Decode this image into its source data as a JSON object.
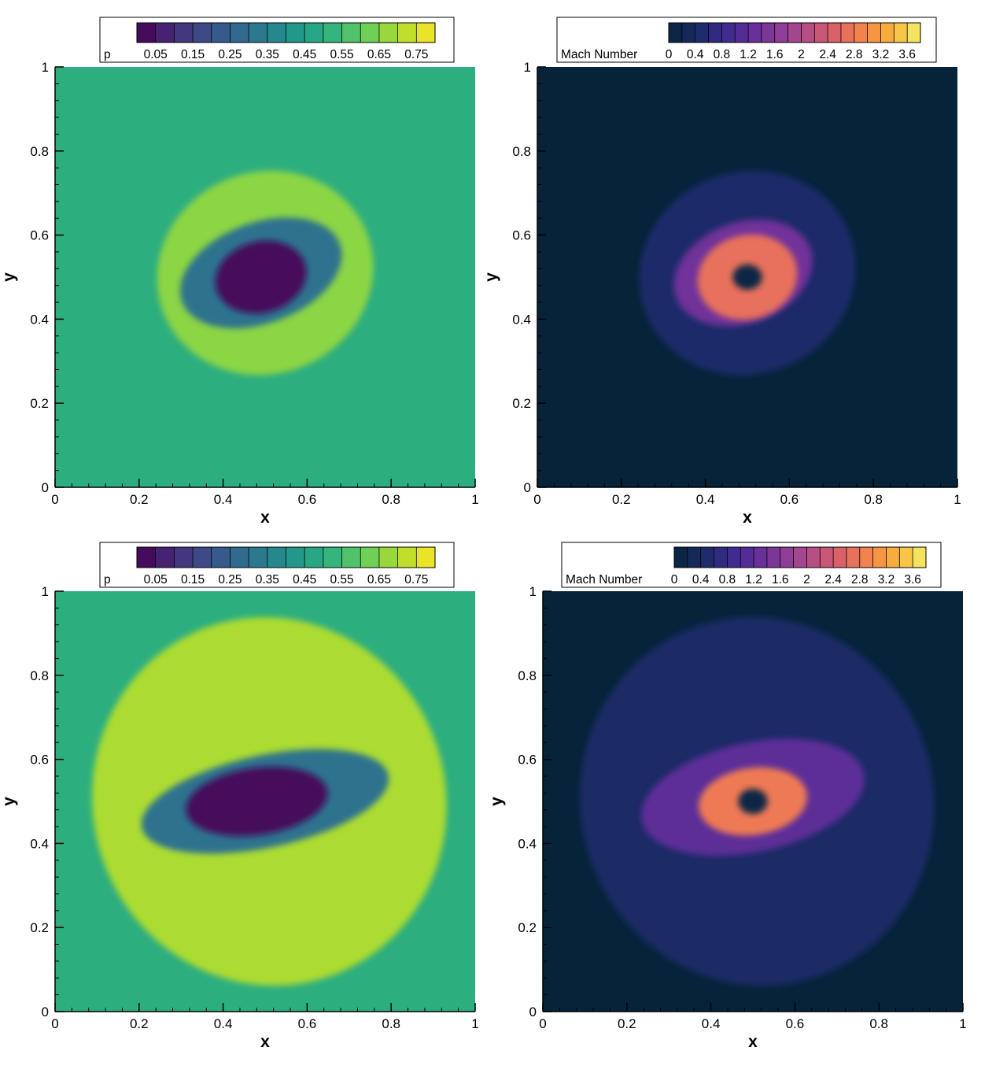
{
  "chart_data": [
    {
      "type": "heatmap",
      "field": "p",
      "colormap": "viridis",
      "colorbar": {
        "label": "p",
        "ticks": [
          "0.05",
          "0.15",
          "0.25",
          "0.35",
          "0.45",
          "0.55",
          "0.65",
          "0.75"
        ],
        "tick_values": [
          0.05,
          0.15,
          0.25,
          0.35,
          0.45,
          0.55,
          0.65,
          0.75
        ],
        "range": [
          0.0,
          0.8
        ],
        "levels": 16
      },
      "xlabel": "x",
      "ylabel": "y",
      "xlim": [
        0,
        1
      ],
      "ylim": [
        0,
        1
      ],
      "xticks": [
        "0",
        "0.2",
        "0.4",
        "0.6",
        "0.8",
        "1"
      ],
      "yticks": [
        "0",
        "0.2",
        "0.4",
        "0.6",
        "0.8",
        "1"
      ],
      "background_value": 0.5,
      "features": [
        {
          "shape": "ellipse",
          "cx": 0.5,
          "cy": 0.51,
          "rx": 0.26,
          "ry": 0.24,
          "rotation": -22,
          "value": 0.66
        },
        {
          "shape": "ellipse",
          "cx": 0.49,
          "cy": 0.51,
          "rx": 0.2,
          "ry": 0.12,
          "rotation": -20,
          "value": 0.3
        },
        {
          "shape": "ellipse",
          "cx": 0.49,
          "cy": 0.5,
          "rx": 0.11,
          "ry": 0.085,
          "rotation": -15,
          "value": 0.02
        }
      ]
    },
    {
      "type": "heatmap",
      "field": "Mach Number",
      "colormap": "plasma-dark",
      "colorbar": {
        "label": "Mach Number",
        "ticks": [
          "0",
          "0.4",
          "0.8",
          "1.2",
          "1.6",
          "2",
          "2.4",
          "2.8",
          "3.2",
          "3.6"
        ],
        "tick_values": [
          0,
          0.4,
          0.8,
          1.2,
          1.6,
          2.0,
          2.4,
          2.8,
          3.2,
          3.6
        ],
        "range": [
          0,
          3.8
        ],
        "levels": 19
      },
      "xlabel": "x",
      "ylabel": "y",
      "xlim": [
        0,
        1
      ],
      "ylim": [
        0,
        1
      ],
      "xticks": [
        "0",
        "0.2",
        "0.4",
        "0.6",
        "0.8",
        "1"
      ],
      "yticks": [
        "0",
        "0.2",
        "0.4",
        "0.6",
        "0.8",
        "1"
      ],
      "background_value": 0.0,
      "features": [
        {
          "shape": "ellipse",
          "cx": 0.5,
          "cy": 0.51,
          "rx": 0.26,
          "ry": 0.24,
          "rotation": -22,
          "value": 0.45
        },
        {
          "shape": "ellipse",
          "cx": 0.49,
          "cy": 0.51,
          "rx": 0.17,
          "ry": 0.12,
          "rotation": -20,
          "value": 1.4
        },
        {
          "shape": "ellipse",
          "cx": 0.5,
          "cy": 0.5,
          "rx": 0.12,
          "ry": 0.1,
          "rotation": -15,
          "value": 2.7
        },
        {
          "shape": "ellipse",
          "cx": 0.5,
          "cy": 0.5,
          "rx": 0.035,
          "ry": 0.03,
          "rotation": 0,
          "value": 0.1
        }
      ]
    },
    {
      "type": "heatmap",
      "field": "p",
      "colormap": "viridis",
      "colorbar": {
        "label": "p",
        "ticks": [
          "0.05",
          "0.15",
          "0.25",
          "0.35",
          "0.45",
          "0.55",
          "0.65",
          "0.75"
        ],
        "tick_values": [
          0.05,
          0.15,
          0.25,
          0.35,
          0.45,
          0.55,
          0.65,
          0.75
        ],
        "range": [
          0.0,
          0.8
        ],
        "levels": 16
      },
      "xlabel": "x",
      "ylabel": "y",
      "xlim": [
        0,
        1
      ],
      "ylim": [
        0,
        1
      ],
      "xticks": [
        "0",
        "0.2",
        "0.4",
        "0.6",
        "0.8",
        "1"
      ],
      "yticks": [
        "0",
        "0.2",
        "0.4",
        "0.6",
        "0.8",
        "1"
      ],
      "background_value": 0.5,
      "features": [
        {
          "shape": "ellipse",
          "cx": 0.51,
          "cy": 0.5,
          "rx": 0.42,
          "ry": 0.44,
          "rotation": -18,
          "value": 0.7
        },
        {
          "shape": "ellipse",
          "cx": 0.5,
          "cy": 0.5,
          "rx": 0.3,
          "ry": 0.11,
          "rotation": -12,
          "value": 0.3
        },
        {
          "shape": "ellipse",
          "cx": 0.48,
          "cy": 0.5,
          "rx": 0.17,
          "ry": 0.08,
          "rotation": -8,
          "value": 0.02
        }
      ]
    },
    {
      "type": "heatmap",
      "field": "Mach Number",
      "colormap": "plasma-dark",
      "colorbar": {
        "label": "Mach Number",
        "ticks": [
          "0",
          "0.4",
          "0.8",
          "1.2",
          "1.6",
          "2",
          "2.4",
          "2.8",
          "3.2",
          "3.6"
        ],
        "tick_values": [
          0,
          0.4,
          0.8,
          1.2,
          1.6,
          2.0,
          2.4,
          2.8,
          3.2,
          3.6
        ],
        "range": [
          0,
          3.8
        ],
        "levels": 19
      },
      "xlabel": "x",
      "ylabel": "y",
      "xlim": [
        0,
        1
      ],
      "ylim": [
        0,
        1
      ],
      "xticks": [
        "0",
        "0.2",
        "0.4",
        "0.6",
        "0.8",
        "1"
      ],
      "yticks": [
        "0",
        "0.2",
        "0.4",
        "0.6",
        "0.8",
        "1"
      ],
      "background_value": 0.0,
      "features": [
        {
          "shape": "ellipse",
          "cx": 0.51,
          "cy": 0.5,
          "rx": 0.42,
          "ry": 0.44,
          "rotation": -18,
          "value": 0.42
        },
        {
          "shape": "ellipse",
          "cx": 0.5,
          "cy": 0.51,
          "rx": 0.27,
          "ry": 0.13,
          "rotation": -12,
          "value": 1.2
        },
        {
          "shape": "ellipse",
          "cx": 0.5,
          "cy": 0.5,
          "rx": 0.13,
          "ry": 0.08,
          "rotation": -8,
          "value": 2.8
        },
        {
          "shape": "ellipse",
          "cx": 0.5,
          "cy": 0.5,
          "rx": 0.035,
          "ry": 0.03,
          "rotation": 0,
          "value": 0.1
        }
      ]
    }
  ]
}
